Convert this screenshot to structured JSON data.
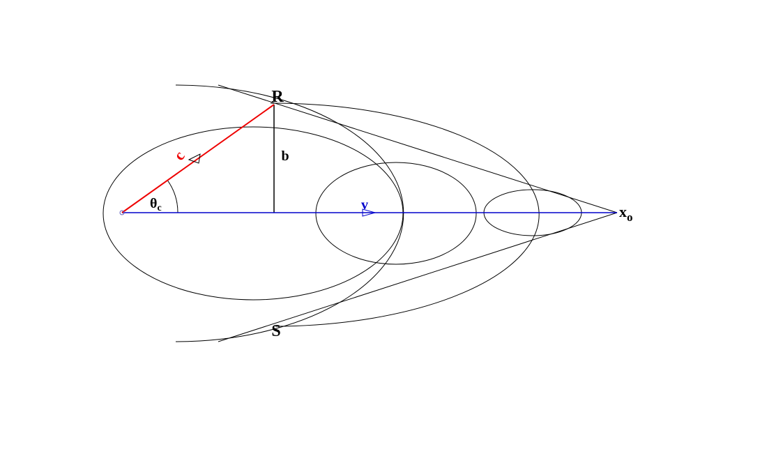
{
  "labels": {
    "R": "R",
    "S": "S",
    "b": "b",
    "c": "c",
    "v": "v",
    "theta": "θ",
    "theta_sub": "c",
    "x": "x",
    "x_sub": "o"
  }
}
